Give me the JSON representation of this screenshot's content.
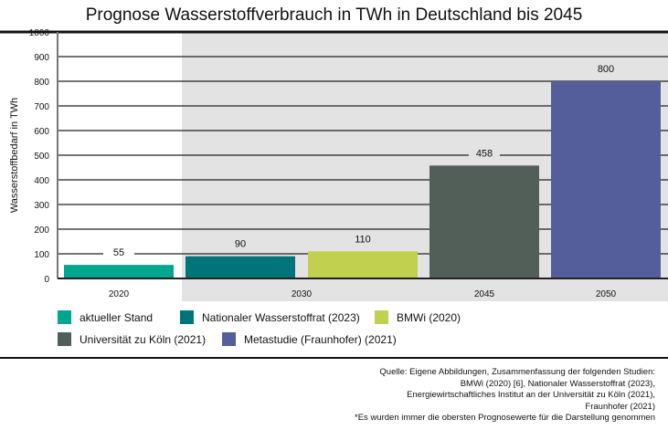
{
  "chart_data": {
    "type": "bar",
    "title": "Prognose Wasserstoffverbrauch in TWh in Deutschland bis 2045",
    "ylabel": "Wasserstoffbedarf in TWh",
    "xlabel": "",
    "ylim": [
      0,
      1000
    ],
    "yticks": [
      0,
      100,
      200,
      300,
      400,
      500,
      600,
      700,
      800,
      900,
      1000
    ],
    "grid": true,
    "categories": [
      "2020",
      "2030",
      "2045",
      "2050"
    ],
    "bars": [
      {
        "category": "2020",
        "series": "aktueller Stand",
        "value": 55,
        "label": "55"
      },
      {
        "category": "2030",
        "series": "Nationaler Wasserstoffrat (2023)",
        "value": 90,
        "label": "90"
      },
      {
        "category": "2030",
        "series": "BMWi (2020)",
        "value": 110,
        "label": "110"
      },
      {
        "category": "2045",
        "series": "Universität zu Köln (2021)",
        "value": 458,
        "label": "458"
      },
      {
        "category": "2050",
        "series": "Metastudie (Fraunhofer) (2021)",
        "value": 800,
        "label": "800"
      }
    ],
    "series": [
      {
        "name": "aktueller Stand",
        "color": "#00a78e"
      },
      {
        "name": "Nationaler Wasserstoffrat (2023)",
        "color": "#007579"
      },
      {
        "name": "BMWi (2020)",
        "color": "#c1d04f"
      },
      {
        "name": "Universität zu Köln (2021)",
        "color": "#525e58"
      },
      {
        "name": "Metastudie (Fraunhofer) (2021)",
        "color": "#545e9a"
      }
    ],
    "legend_position": "bottom",
    "highlight_background": "#e3e3e3"
  },
  "source": {
    "lines": [
      "Quelle: Eigene Abbildungen, Zusammenfassung der folgenden Studien:",
      "BMWi (2020) [6], Nationaler Wasserstoffrat (2023),",
      "Energiewirtschaftliches Institut an der Universität zu Köln (2021),",
      "Fraunhofer (2021)",
      "*Es wurden immer die obersten Prognosewerte für die Darstellung genommen"
    ]
  }
}
